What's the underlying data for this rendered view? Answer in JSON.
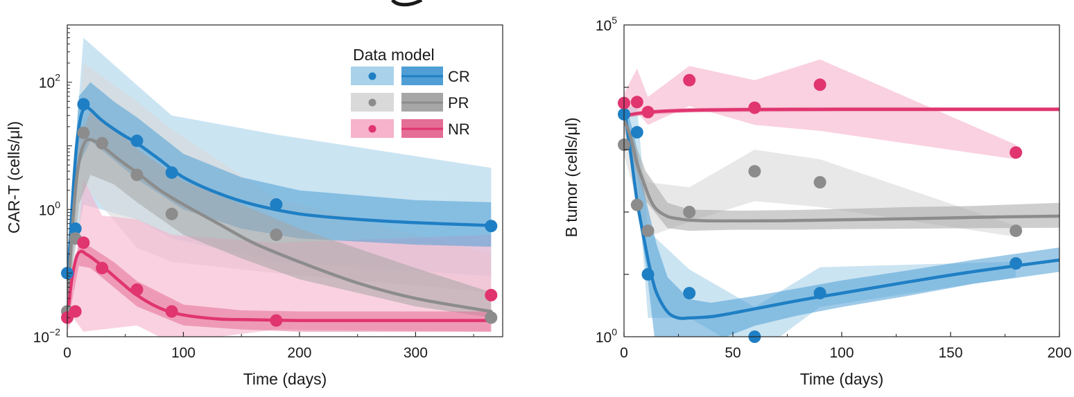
{
  "colors": {
    "CR": "#1f7fc4",
    "PR": "#8c8c8c",
    "NR": "#e0356f",
    "CR_light": "#a9d2ea",
    "PR_light": "#d9d9d9",
    "NR_light": "#f6b3cb",
    "CR_mid": "#4f9fd6",
    "PR_mid": "#a6a6a6",
    "NR_mid": "#e46e96"
  },
  "legend": {
    "title": "Data model",
    "entries": [
      {
        "key": "CR",
        "label": "CR"
      },
      {
        "key": "PR",
        "label": "PR"
      },
      {
        "key": "NR",
        "label": "NR"
      }
    ]
  },
  "chart_data": [
    {
      "type": "line",
      "id": "cart",
      "xlabel": "Time (days)",
      "ylabel": "CAR-T (cells/μl)",
      "xlim": [
        0,
        375
      ],
      "ylim_log10": [
        -2,
        2.9
      ],
      "yscale": "log",
      "xticks": [
        0,
        100,
        200,
        300
      ],
      "xtick_labels": [
        "0",
        "100",
        "200",
        "300"
      ],
      "yticks_log10": [
        -2,
        0,
        2
      ],
      "ytick_labels": [
        {
          "base": "10",
          "exp": "−2"
        },
        {
          "base": "10",
          "exp": "0"
        },
        {
          "base": "10",
          "exp": "2"
        }
      ],
      "series": [
        {
          "name": "CR",
          "points": [
            [
              0,
              0.1
            ],
            [
              7,
              0.5
            ],
            [
              14,
              45
            ],
            [
              60,
              12
            ],
            [
              90,
              3.8
            ],
            [
              180,
              1.2
            ],
            [
              365,
              0.55
            ]
          ],
          "data_band": {
            "x": [
              0,
              14,
              60,
              90,
              180,
              365
            ],
            "lo": [
              0.05,
              1.2,
              0.7,
              0.35,
              0.15,
              0.09
            ],
            "hi": [
              0.2,
              500,
              90,
              30,
              15,
              4.5
            ]
          },
          "model": {
            "x": [
              0,
              4,
              8,
              12,
              16,
              20,
              30,
              45,
              60,
              80,
              100,
              130,
              160,
              200,
              250,
              300,
              365
            ],
            "y": [
              0.05,
              1.0,
              10,
              30,
              40,
              37,
              25,
              16,
              11,
              6,
              3.2,
              1.8,
              1.2,
              0.85,
              0.7,
              0.62,
              0.56
            ]
          },
          "model_band": {
            "x": [
              0,
              10,
              20,
              40,
              60,
              100,
              150,
              200,
              300,
              365
            ],
            "lo": [
              0.03,
              5,
              12,
              6,
              3,
              1,
              0.5,
              0.35,
              0.28,
              0.26
            ],
            "hi": [
              0.1,
              60,
              100,
              50,
              28,
              7.5,
              3.2,
              2,
              1.4,
              1.3
            ]
          }
        },
        {
          "name": "PR",
          "points": [
            [
              0,
              0.025
            ],
            [
              7,
              0.35
            ],
            [
              14,
              16
            ],
            [
              30,
              11
            ],
            [
              60,
              3.5
            ],
            [
              90,
              0.85
            ],
            [
              180,
              0.4
            ],
            [
              365,
              0.02
            ]
          ],
          "data_band": {
            "x": [
              0,
              14,
              60,
              90,
              180,
              365
            ],
            "lo": [
              0.015,
              2.5,
              0.25,
              0.15,
              0.1,
              0.05
            ],
            "hi": [
              0.04,
              200,
              50,
              18,
              1.5,
              0.2
            ]
          },
          "model": {
            "x": [
              0,
              4,
              8,
              12,
              16,
              20,
              25,
              30,
              45,
              60,
              80,
              100,
              130,
              160,
              200,
              250,
              300,
              365
            ],
            "y": [
              0.03,
              0.4,
              3,
              8,
              12,
              12.5,
              11.5,
              10,
              6,
              3.8,
              2,
              1.2,
              0.6,
              0.3,
              0.15,
              0.07,
              0.04,
              0.025
            ]
          },
          "model_band": {
            "x": [
              0,
              10,
              20,
              40,
              60,
              100,
              150,
              200,
              300,
              365
            ],
            "lo": [
              0.02,
              1.2,
              3.5,
              2.5,
              1.3,
              0.4,
              0.17,
              0.08,
              0.03,
              0.02
            ],
            "hi": [
              0.05,
              12,
              35,
              20,
              9,
              2.8,
              1.2,
              0.5,
              0.12,
              0.05
            ]
          }
        },
        {
          "name": "NR",
          "points": [
            [
              0,
              0.02
            ],
            [
              7,
              0.025
            ],
            [
              14,
              0.3
            ],
            [
              30,
              0.12
            ],
            [
              60,
              0.055
            ],
            [
              90,
              0.025
            ],
            [
              180,
              0.018
            ],
            [
              365,
              0.045
            ]
          ],
          "data_band": {
            "x": [
              0,
              5,
              14,
              30,
              60,
              90,
              180,
              365
            ],
            "lo": [
              0.012,
              0.02,
              0.012,
              0.013,
              0.015,
              0.008,
              0.013,
              0.012
            ],
            "hi": [
              0.03,
              0.05,
              3,
              0.8,
              0.7,
              0.4,
              0.3,
              0.4
            ]
          },
          "model": {
            "x": [
              0,
              4,
              8,
              12,
              16,
              20,
              30,
              45,
              60,
              80,
              100,
              130,
              160,
              200,
              250,
              300,
              365
            ],
            "y": [
              0.02,
              0.08,
              0.18,
              0.22,
              0.2,
              0.18,
              0.13,
              0.075,
              0.045,
              0.028,
              0.022,
              0.019,
              0.0185,
              0.018,
              0.018,
              0.018,
              0.018
            ]
          },
          "model_band": {
            "x": [
              0,
              10,
              20,
              40,
              60,
              100,
              150,
              200,
              300,
              365
            ],
            "lo": [
              0.015,
              0.13,
              0.12,
              0.06,
              0.03,
              0.015,
              0.013,
              0.012,
              0.012,
              0.012
            ],
            "hi": [
              0.03,
              0.28,
              0.26,
              0.15,
              0.075,
              0.032,
              0.026,
              0.025,
              0.025,
              0.025
            ]
          }
        }
      ]
    },
    {
      "type": "line",
      "id": "btumor",
      "xlabel": "Time (days)",
      "ylabel": "B tumor (cells/μl)",
      "xlim": [
        0,
        200
      ],
      "ylim_log10": [
        0,
        5
      ],
      "yscale": "log",
      "xticks": [
        0,
        50,
        100,
        150,
        200
      ],
      "xtick_labels": [
        "0",
        "50",
        "100",
        "150",
        "200"
      ],
      "yticks_log10": [
        0,
        5
      ],
      "ytick_labels": [
        {
          "base": "10",
          "exp": "0"
        },
        {
          "base": "10",
          "exp": "5"
        }
      ],
      "series": [
        {
          "name": "CR",
          "points": [
            [
              0,
              3700
            ],
            [
              6,
              1900
            ],
            [
              11,
              10
            ],
            [
              30,
              5
            ],
            [
              60,
              1
            ],
            [
              90,
              5
            ],
            [
              180,
              15
            ]
          ],
          "data_band": {
            "x": [
              0,
              6,
              11,
              30,
              60,
              90,
              180
            ],
            "lo": [
              2500,
              400,
              2,
              2,
              0.5,
              3,
              9
            ],
            "hi": [
              5000,
              5000,
              50,
              12,
              3,
              13,
              16
            ]
          },
          "model": {
            "x": [
              0,
              3,
              6,
              9,
              12,
              15,
              20,
              25,
              30,
              40,
              50,
              60,
              80,
              100,
              130,
              160,
              200
            ],
            "y": [
              5000,
              900,
              150,
              40,
              12,
              5,
              2.5,
              2,
              2,
              2.1,
              2.4,
              2.8,
              3.8,
              5,
              7.5,
              11,
              17
            ]
          },
          "model_band": {
            "x": [
              0,
              5,
              10,
              15,
              20,
              30,
              40,
              60,
              80,
              100,
              130,
              160,
              200
            ],
            "lo": [
              3000,
              200,
              15,
              0.5,
              0.3,
              0.5,
              0.8,
              1.5,
              2.2,
              3,
              4.5,
              7,
              11
            ],
            "hi": [
              7000,
              1500,
              160,
              30,
              9,
              4,
              3.5,
              4.5,
              6,
              8,
              11.5,
              17,
              27
            ]
          }
        },
        {
          "name": "PR",
          "points": [
            [
              0,
              1200
            ],
            [
              6,
              130
            ],
            [
              11,
              50
            ],
            [
              30,
              100
            ],
            [
              60,
              450
            ],
            [
              90,
              300
            ],
            [
              180,
              50
            ]
          ],
          "data_band": {
            "x": [
              0,
              11,
              30,
              60,
              90,
              180
            ],
            "lo": [
              800,
              40,
              70,
              150,
              120,
              40
            ],
            "hi": [
              2000,
              300,
              250,
              1000,
              700,
              60
            ]
          },
          "model": {
            "x": [
              0,
              3,
              6,
              9,
              12,
              15,
              20,
              25,
              30,
              40,
              50,
              60,
              80,
              100,
              130,
              160,
              200
            ],
            "y": [
              3000,
              1600,
              600,
              300,
              160,
              110,
              85,
              78,
              74,
              72,
              72,
              72,
              73,
              75,
              78,
              82,
              86
            ]
          },
          "model_band": {
            "x": [
              0,
              5,
              10,
              20,
              30,
              50,
              80,
              100,
              130,
              160,
              200
            ],
            "lo": [
              2000,
              500,
              150,
              55,
              50,
              52,
              52,
              53,
              54,
              55,
              56
            ],
            "hi": [
              4000,
              1300,
              450,
              140,
              110,
              105,
              108,
              112,
              120,
              125,
              140
            ]
          }
        },
        {
          "name": "NR",
          "points": [
            [
              0,
              5600
            ],
            [
              6,
              5800
            ],
            [
              11,
              4000
            ],
            [
              30,
              13000
            ],
            [
              60,
              4700
            ],
            [
              90,
              11000
            ],
            [
              180,
              900
            ]
          ],
          "data_band": {
            "x": [
              0,
              6,
              11,
              30,
              60,
              90,
              180
            ],
            "lo": [
              4000,
              4000,
              2500,
              5000,
              2500,
              2000,
              700
            ],
            "hi": [
              8000,
              20000,
              7000,
              22000,
              13000,
              28000,
              1200
            ]
          },
          "model": {
            "x": [
              0,
              3,
              6,
              10,
              15,
              20,
              30,
              40,
              60,
              80,
              100,
              130,
              160,
              200
            ],
            "y": [
              3500,
              3650,
              3800,
              3950,
              4080,
              4180,
              4280,
              4340,
              4400,
              4420,
              4430,
              4440,
              4440,
              4440
            ]
          },
          "model_band": {
            "x": [
              0,
              10,
              30,
              60,
              100,
              160,
              200
            ],
            "lo": [
              3200,
              3650,
              3950,
              4050,
              4100,
              4100,
              4100
            ],
            "hi": [
              3800,
              4250,
              4650,
              4750,
              4800,
              4800,
              4800
            ]
          }
        }
      ]
    }
  ]
}
